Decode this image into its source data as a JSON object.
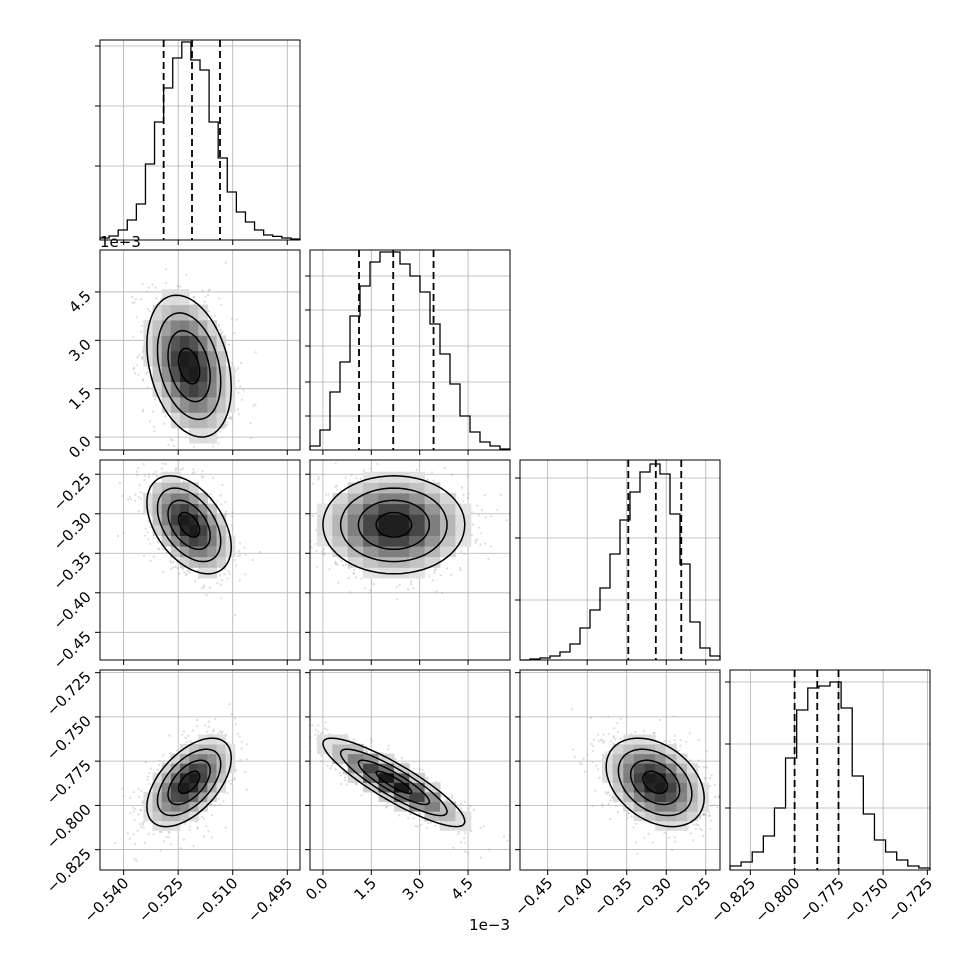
{
  "chart_data": {
    "type": "corner",
    "n_params": 4,
    "colors": {
      "hist": "#000000",
      "grid": "#b0b0b0",
      "density": "#000000",
      "points": "#9a9a9a"
    },
    "offset_labels": [
      "1e−3",
      "1e−3"
    ],
    "axes": [
      {
        "range": [
          -0.5465,
          -0.4915
        ],
        "ticks": [
          -0.54,
          -0.525,
          -0.51,
          -0.495
        ],
        "tick_labels": [
          "−0.540",
          "−0.525",
          "−0.510",
          "−0.495"
        ],
        "quantiles": [
          -0.529,
          -0.5212,
          -0.5135
        ],
        "hist_bins": [
          0.01,
          0.02,
          0.05,
          0.1,
          0.18,
          0.38,
          0.59,
          0.76,
          0.91,
          0.99,
          0.9,
          0.85,
          0.59,
          0.41,
          0.24,
          0.14,
          0.09,
          0.05,
          0.025,
          0.018,
          0.01,
          0.005
        ],
        "hist_max_label": 0.92,
        "hist_ticks": [
          0.37,
          0.67,
          0.97
        ],
        "center": -0.522,
        "sigma": 0.0058
      },
      {
        "range": [
          -0.0004,
          0.0058
        ],
        "ticks": [
          0.0,
          1.5,
          3.0,
          4.5
        ],
        "tick_labels": [
          "0.0",
          "1.5",
          "3.0",
          "4.5"
        ],
        "scale": 0.001,
        "quantiles": [
          0.00112,
          0.00218,
          0.00343
        ],
        "hist_bins": [
          0.02,
          0.1,
          0.29,
          0.44,
          0.67,
          0.82,
          0.94,
          0.99,
          0.99,
          0.93,
          0.87,
          0.79,
          0.63,
          0.48,
          0.33,
          0.17,
          0.09,
          0.04,
          0.02,
          0.005
        ],
        "hist_max_label": 0.92,
        "hist_ticks": [
          0.17,
          0.34,
          0.52,
          0.7,
          0.87
        ],
        "center": 0.0022,
        "sigma": 0.0011
      },
      {
        "range": [
          -0.485,
          -0.232
        ],
        "ticks": [
          -0.45,
          -0.4,
          -0.35,
          -0.3,
          -0.25
        ],
        "tick_labels": [
          "−0.45",
          "−0.40",
          "−0.35",
          "−0.30",
          "−0.25"
        ],
        "quantiles": [
          -0.348,
          -0.3132,
          -0.281
        ],
        "hist_bins": [
          0.0,
          0.005,
          0.01,
          0.02,
          0.04,
          0.08,
          0.16,
          0.25,
          0.36,
          0.53,
          0.7,
          0.84,
          0.94,
          0.98,
          0.93,
          0.73,
          0.48,
          0.19,
          0.06,
          0.02
        ],
        "hist_max_label": 0.92,
        "hist_ticks": [
          0.3,
          0.61,
          0.91
        ],
        "center": -0.314,
        "sigma": 0.031
      },
      {
        "range": [
          -0.8365,
          -0.7235
        ],
        "ticks": [
          -0.825,
          -0.8,
          -0.775,
          -0.75,
          -0.725
        ],
        "tick_labels": [
          "−0.825",
          "−0.800",
          "−0.775",
          "−0.750",
          "−0.725"
        ],
        "quantiles": [
          -0.8,
          -0.7872,
          -0.7752
        ],
        "hist_bins": [
          0.02,
          0.04,
          0.09,
          0.17,
          0.31,
          0.56,
          0.8,
          0.91,
          0.92,
          0.94,
          0.81,
          0.47,
          0.28,
          0.15,
          0.09,
          0.05,
          0.02,
          0.01
        ],
        "hist_max_label": 0.92,
        "hist_ticks": [
          0.31,
          0.63,
          0.94
        ],
        "center": -0.787,
        "sigma": 0.0125
      }
    ],
    "correlations": {
      "1-0": -0.3,
      "2-0": -0.45,
      "2-1": 0.0,
      "3-0": 0.55,
      "3-1": -0.88,
      "3-2": -0.35
    },
    "diag_xtick_labels_shown": [
      false,
      false,
      false,
      true
    ]
  }
}
